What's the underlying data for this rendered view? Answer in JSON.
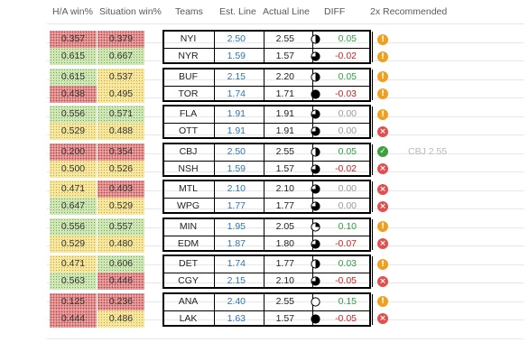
{
  "headers": {
    "ha_win": "H/A win%",
    "situation_win": "Situation win%",
    "teams": "Teams",
    "est_line": "Est. Line",
    "actual_line": "Actual Line",
    "diff": "DIFF",
    "recommended": "2x Recommended"
  },
  "colors": {
    "red": "#e9a0a0",
    "green": "#cfe8b6",
    "yellow": "#f6e8a0",
    "est_blue": "#2e75b6",
    "diff_positive": "#2ea043",
    "diff_negative": "#d02020",
    "diff_zero": "#9a9a9a",
    "rec_warning": "#f0a020",
    "rec_no": "#e05050",
    "rec_yes": "#40a040"
  },
  "games": [
    {
      "rows": [
        {
          "ha": "0.357",
          "ha_color": "red",
          "sit": "0.379",
          "sit_color": "red",
          "team": "NYI",
          "est": "2.50",
          "actual": "2.55",
          "pie": 0.5,
          "diff": "0.05",
          "diff_sign": "pos",
          "rec": "warning",
          "rec_icon": "exclamation-icon"
        },
        {
          "ha": "0.615",
          "ha_color": "green",
          "sit": "0.667",
          "sit_color": "green",
          "team": "NYR",
          "est": "1.59",
          "actual": "1.57",
          "pie": 0.75,
          "diff": "-0.02",
          "diff_sign": "neg",
          "rec": "warning",
          "rec_icon": "exclamation-icon"
        }
      ]
    },
    {
      "rows": [
        {
          "ha": "0.615",
          "ha_color": "green",
          "sit": "0.537",
          "sit_color": "yellow",
          "team": "BUF",
          "est": "2.15",
          "actual": "2.20",
          "pie": 0.5,
          "diff": "0.05",
          "diff_sign": "pos",
          "rec": "warning",
          "rec_icon": "exclamation-icon"
        },
        {
          "ha": "0.438",
          "ha_color": "red",
          "sit": "0.495",
          "sit_color": "yellow",
          "team": "TOR",
          "est": "1.74",
          "actual": "1.71",
          "pie": 1.0,
          "diff": "-0.03",
          "diff_sign": "neg",
          "rec": "warning",
          "rec_icon": "exclamation-icon"
        }
      ]
    },
    {
      "rows": [
        {
          "ha": "0.556",
          "ha_color": "green",
          "sit": "0.571",
          "sit_color": "green",
          "team": "FLA",
          "est": "1.91",
          "actual": "1.91",
          "pie": 0.75,
          "diff": "0.00",
          "diff_sign": "zero",
          "rec": "warning",
          "rec_icon": "exclamation-icon"
        },
        {
          "ha": "0.529",
          "ha_color": "yellow",
          "sit": "0.488",
          "sit_color": "yellow",
          "team": "OTT",
          "est": "1.91",
          "actual": "1.91",
          "pie": 0.75,
          "diff": "0.00",
          "diff_sign": "zero",
          "rec": "no",
          "rec_icon": "x-icon"
        }
      ]
    },
    {
      "rows": [
        {
          "ha": "0.200",
          "ha_color": "red",
          "sit": "0.354",
          "sit_color": "red",
          "team": "CBJ",
          "est": "2.50",
          "actual": "2.55",
          "pie": 0.5,
          "diff": "0.05",
          "diff_sign": "pos",
          "rec": "yes",
          "rec_icon": "check-icon",
          "note": "CBJ 2.55"
        },
        {
          "ha": "0.500",
          "ha_color": "yellow",
          "sit": "0.526",
          "sit_color": "yellow",
          "team": "NSH",
          "est": "1.59",
          "actual": "1.57",
          "pie": 0.75,
          "diff": "-0.02",
          "diff_sign": "neg",
          "rec": "no",
          "rec_icon": "x-icon"
        }
      ]
    },
    {
      "rows": [
        {
          "ha": "0.471",
          "ha_color": "yellow",
          "sit": "0.403",
          "sit_color": "red",
          "team": "MTL",
          "est": "2.10",
          "actual": "2.10",
          "pie": 0.75,
          "diff": "0.00",
          "diff_sign": "zero",
          "rec": "no",
          "rec_icon": "x-icon"
        },
        {
          "ha": "0.647",
          "ha_color": "green",
          "sit": "0.529",
          "sit_color": "yellow",
          "team": "WPG",
          "est": "1.77",
          "actual": "1.77",
          "pie": 0.75,
          "diff": "0.00",
          "diff_sign": "zero",
          "rec": "no",
          "rec_icon": "x-icon"
        }
      ]
    },
    {
      "rows": [
        {
          "ha": "0.556",
          "ha_color": "green",
          "sit": "0.557",
          "sit_color": "green",
          "team": "MIN",
          "est": "1.95",
          "actual": "2.05",
          "pie": 0.25,
          "diff": "0.10",
          "diff_sign": "pos",
          "rec": "warning",
          "rec_icon": "exclamation-icon"
        },
        {
          "ha": "0.529",
          "ha_color": "yellow",
          "sit": "0.480",
          "sit_color": "yellow",
          "team": "EDM",
          "est": "1.87",
          "actual": "1.80",
          "pie": 0.75,
          "diff": "-0.07",
          "diff_sign": "neg",
          "rec": "no",
          "rec_icon": "x-icon"
        }
      ]
    },
    {
      "rows": [
        {
          "ha": "0.471",
          "ha_color": "yellow",
          "sit": "0.606",
          "sit_color": "green",
          "team": "DET",
          "est": "1.74",
          "actual": "1.77",
          "pie": 0.5,
          "diff": "0.03",
          "diff_sign": "pos",
          "rec": "warning",
          "rec_icon": "exclamation-icon"
        },
        {
          "ha": "0.563",
          "ha_color": "green",
          "sit": "0.446",
          "sit_color": "red",
          "team": "CGY",
          "est": "2.15",
          "actual": "2.10",
          "pie": 0.75,
          "diff": "-0.05",
          "diff_sign": "neg",
          "rec": "no",
          "rec_icon": "x-icon"
        }
      ]
    },
    {
      "rows": [
        {
          "ha": "0.125",
          "ha_color": "red",
          "sit": "0.236",
          "sit_color": "red",
          "team": "ANA",
          "est": "2.40",
          "actual": "2.55",
          "pie": 0.0,
          "diff": "0.15",
          "diff_sign": "pos",
          "rec": "warning",
          "rec_icon": "exclamation-icon"
        },
        {
          "ha": "0.444",
          "ha_color": "red",
          "sit": "0.486",
          "sit_color": "yellow",
          "team": "LAK",
          "est": "1.63",
          "actual": "1.57",
          "pie": 1.0,
          "diff": "-0.05",
          "diff_sign": "neg",
          "rec": "no",
          "rec_icon": "x-icon"
        }
      ]
    }
  ]
}
